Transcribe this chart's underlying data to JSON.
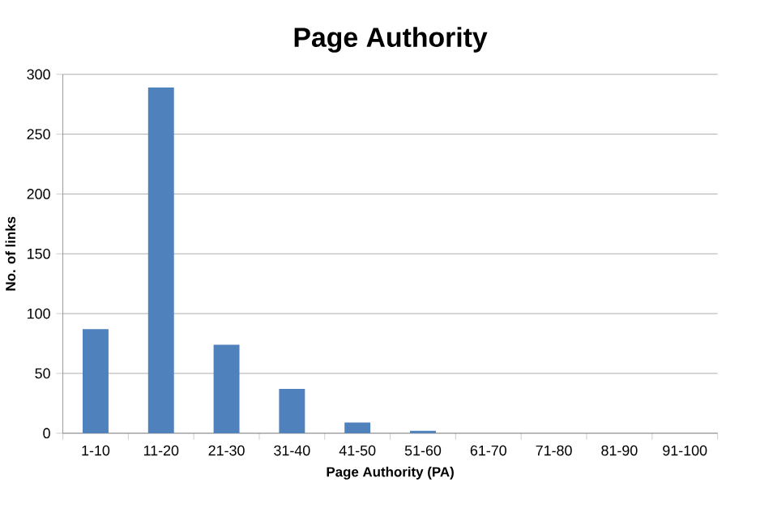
{
  "chart_data": {
    "type": "bar",
    "title": "Page Authority",
    "xlabel": "Page Authority (PA)",
    "ylabel": "No. of links",
    "categories": [
      "1-10",
      "11-20",
      "21-30",
      "31-40",
      "41-50",
      "51-60",
      "61-70",
      "71-80",
      "81-90",
      "91-100"
    ],
    "values": [
      87,
      289,
      74,
      37,
      9,
      2,
      0,
      0,
      0,
      0
    ],
    "color": "#4f81bd",
    "ylim": [
      0,
      300
    ],
    "yticks": [
      0,
      50,
      100,
      150,
      200,
      250,
      300
    ],
    "grid": "y"
  }
}
